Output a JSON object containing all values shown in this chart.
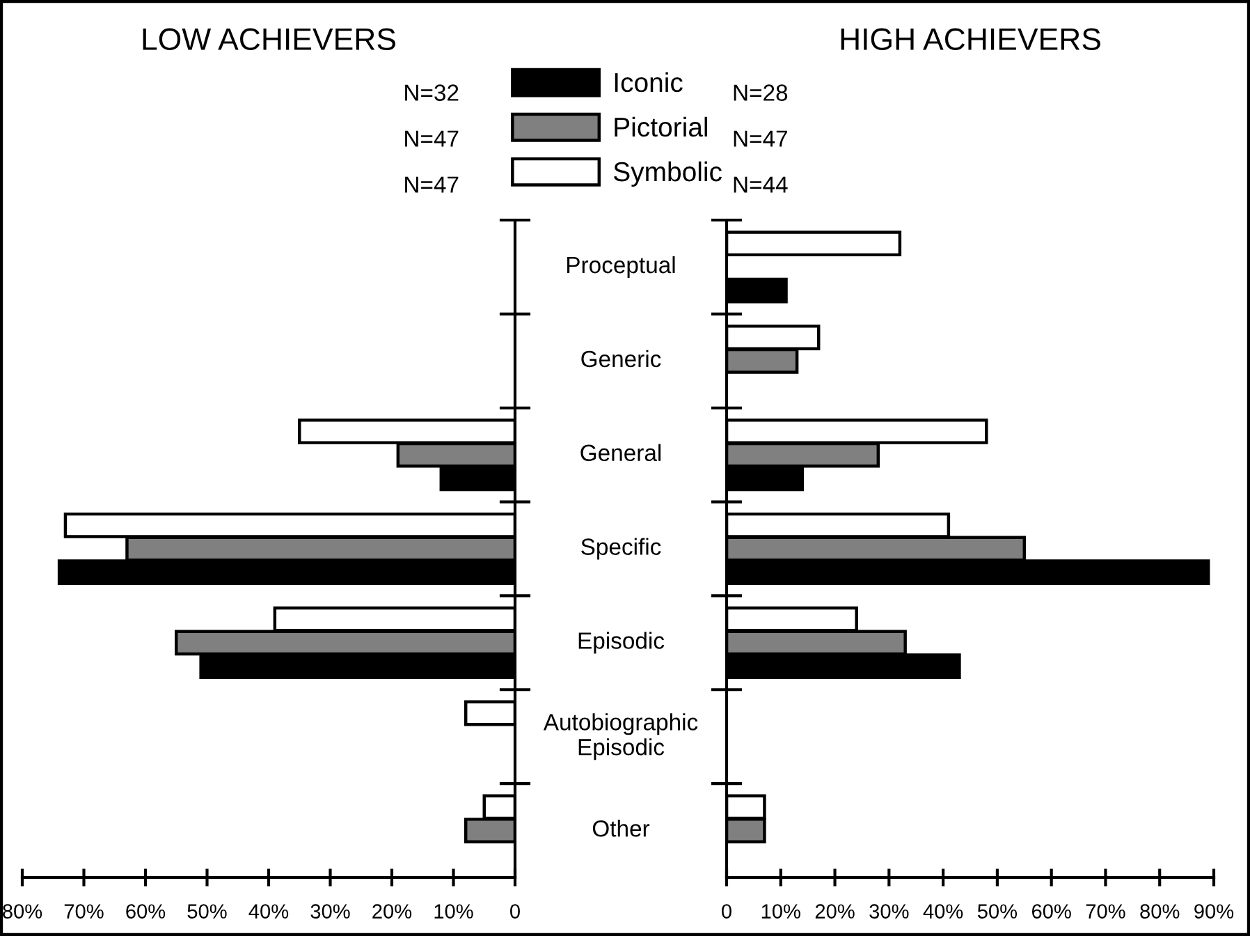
{
  "chart_data": [
    {
      "type": "bar",
      "orientation": "horizontal",
      "title": "LOW ACHIEVERS",
      "categories": [
        "Proceptual",
        "Generic",
        "General",
        "Specific",
        "Episodic",
        "Autobiographic\nEpisodic",
        "Other"
      ],
      "series": [
        {
          "name": "Symbolic",
          "color": "#ffffff",
          "values": [
            null,
            null,
            35,
            73,
            39,
            8,
            5
          ]
        },
        {
          "name": "Pictorial",
          "color": "#808080",
          "values": [
            null,
            null,
            19,
            63,
            55,
            null,
            8
          ]
        },
        {
          "name": "Iconic",
          "color": "#000000",
          "values": [
            null,
            null,
            12,
            74,
            51,
            null,
            null
          ]
        }
      ],
      "annotations": [
        "N=32",
        "N=47",
        "N=47"
      ],
      "xlim": [
        80,
        0
      ],
      "xticks": [
        {
          "value": 80,
          "label": "80%"
        },
        {
          "value": 70,
          "label": "70%"
        },
        {
          "value": 60,
          "label": "60%"
        },
        {
          "value": 50,
          "label": "50%"
        },
        {
          "value": 40,
          "label": "40%"
        },
        {
          "value": 30,
          "label": "30%"
        },
        {
          "value": 20,
          "label": "20%"
        },
        {
          "value": 10,
          "label": "10%"
        },
        0
      ],
      "legend": "top right",
      "grid": false
    },
    {
      "type": "bar",
      "orientation": "horizontal",
      "title": "HIGH ACHIEVERS",
      "categories": [
        null,
        null,
        null,
        null,
        null,
        null,
        null
      ],
      "series": [
        {
          "color": "#ffffff",
          "values": [
            32,
            17,
            48,
            41,
            24,
            null,
            7
          ]
        },
        {
          "color": "#808080",
          "values": [
            null,
            13,
            28,
            55,
            33,
            null,
            7
          ]
        },
        {
          "color": "#000000",
          "values": [
            11,
            null,
            14,
            89,
            43,
            null,
            null
          ]
        }
      ],
      "annotations": [
        "N=28",
        "N=47",
        "N=44"
      ],
      "xlim": [
        0,
        90
      ],
      "xticks": [
        0,
        {
          "value": 10,
          "label": "10%"
        },
        {
          "value": 20,
          "label": "20%"
        },
        {
          "value": 30,
          "label": "30%"
        },
        {
          "value": 40,
          "label": "40%"
        },
        {
          "value": 50,
          "label": "50%"
        },
        {
          "value": 60,
          "label": "60%"
        },
        {
          "value": 70,
          "label": "70%"
        },
        {
          "value": 80,
          "label": "80%"
        },
        {
          "value": 90,
          "label": "90%"
        }
      ],
      "grid": false
    }
  ]
}
